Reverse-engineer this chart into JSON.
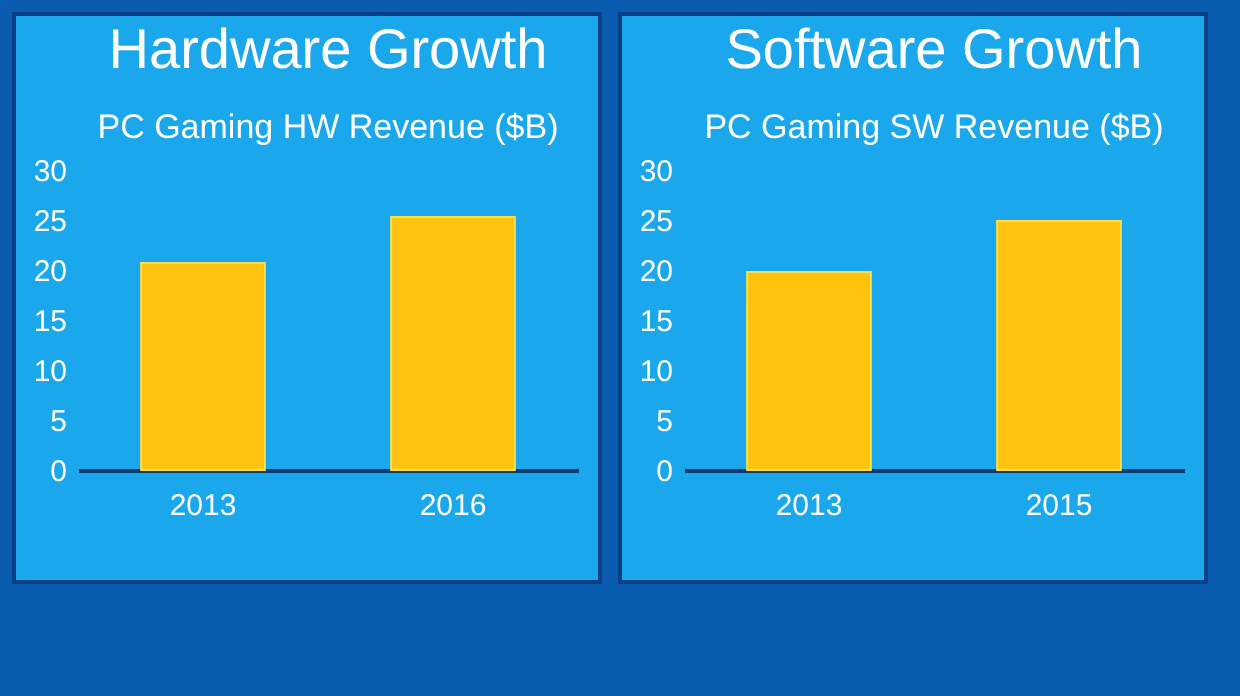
{
  "chart_data": [
    {
      "type": "bar",
      "title": "Hardware Growth",
      "subtitle": "PC Gaming HW Revenue ($B)",
      "categories": [
        "2013",
        "2016"
      ],
      "values": [
        20.7,
        25.3
      ],
      "color": "#ffc20e",
      "ylim": [
        0,
        30
      ],
      "yticks": [
        0,
        5,
        10,
        15,
        20,
        25,
        30
      ],
      "grid": false
    },
    {
      "type": "bar",
      "title": "Software Growth",
      "subtitle": "PC Gaming SW Revenue ($B)",
      "categories": [
        "2013",
        "2015"
      ],
      "values": [
        19.8,
        24.9
      ],
      "color": "#ffc20e",
      "ylim": [
        0,
        30
      ],
      "yticks": [
        0,
        5,
        10,
        15,
        20,
        25,
        30
      ],
      "grid": false
    }
  ]
}
